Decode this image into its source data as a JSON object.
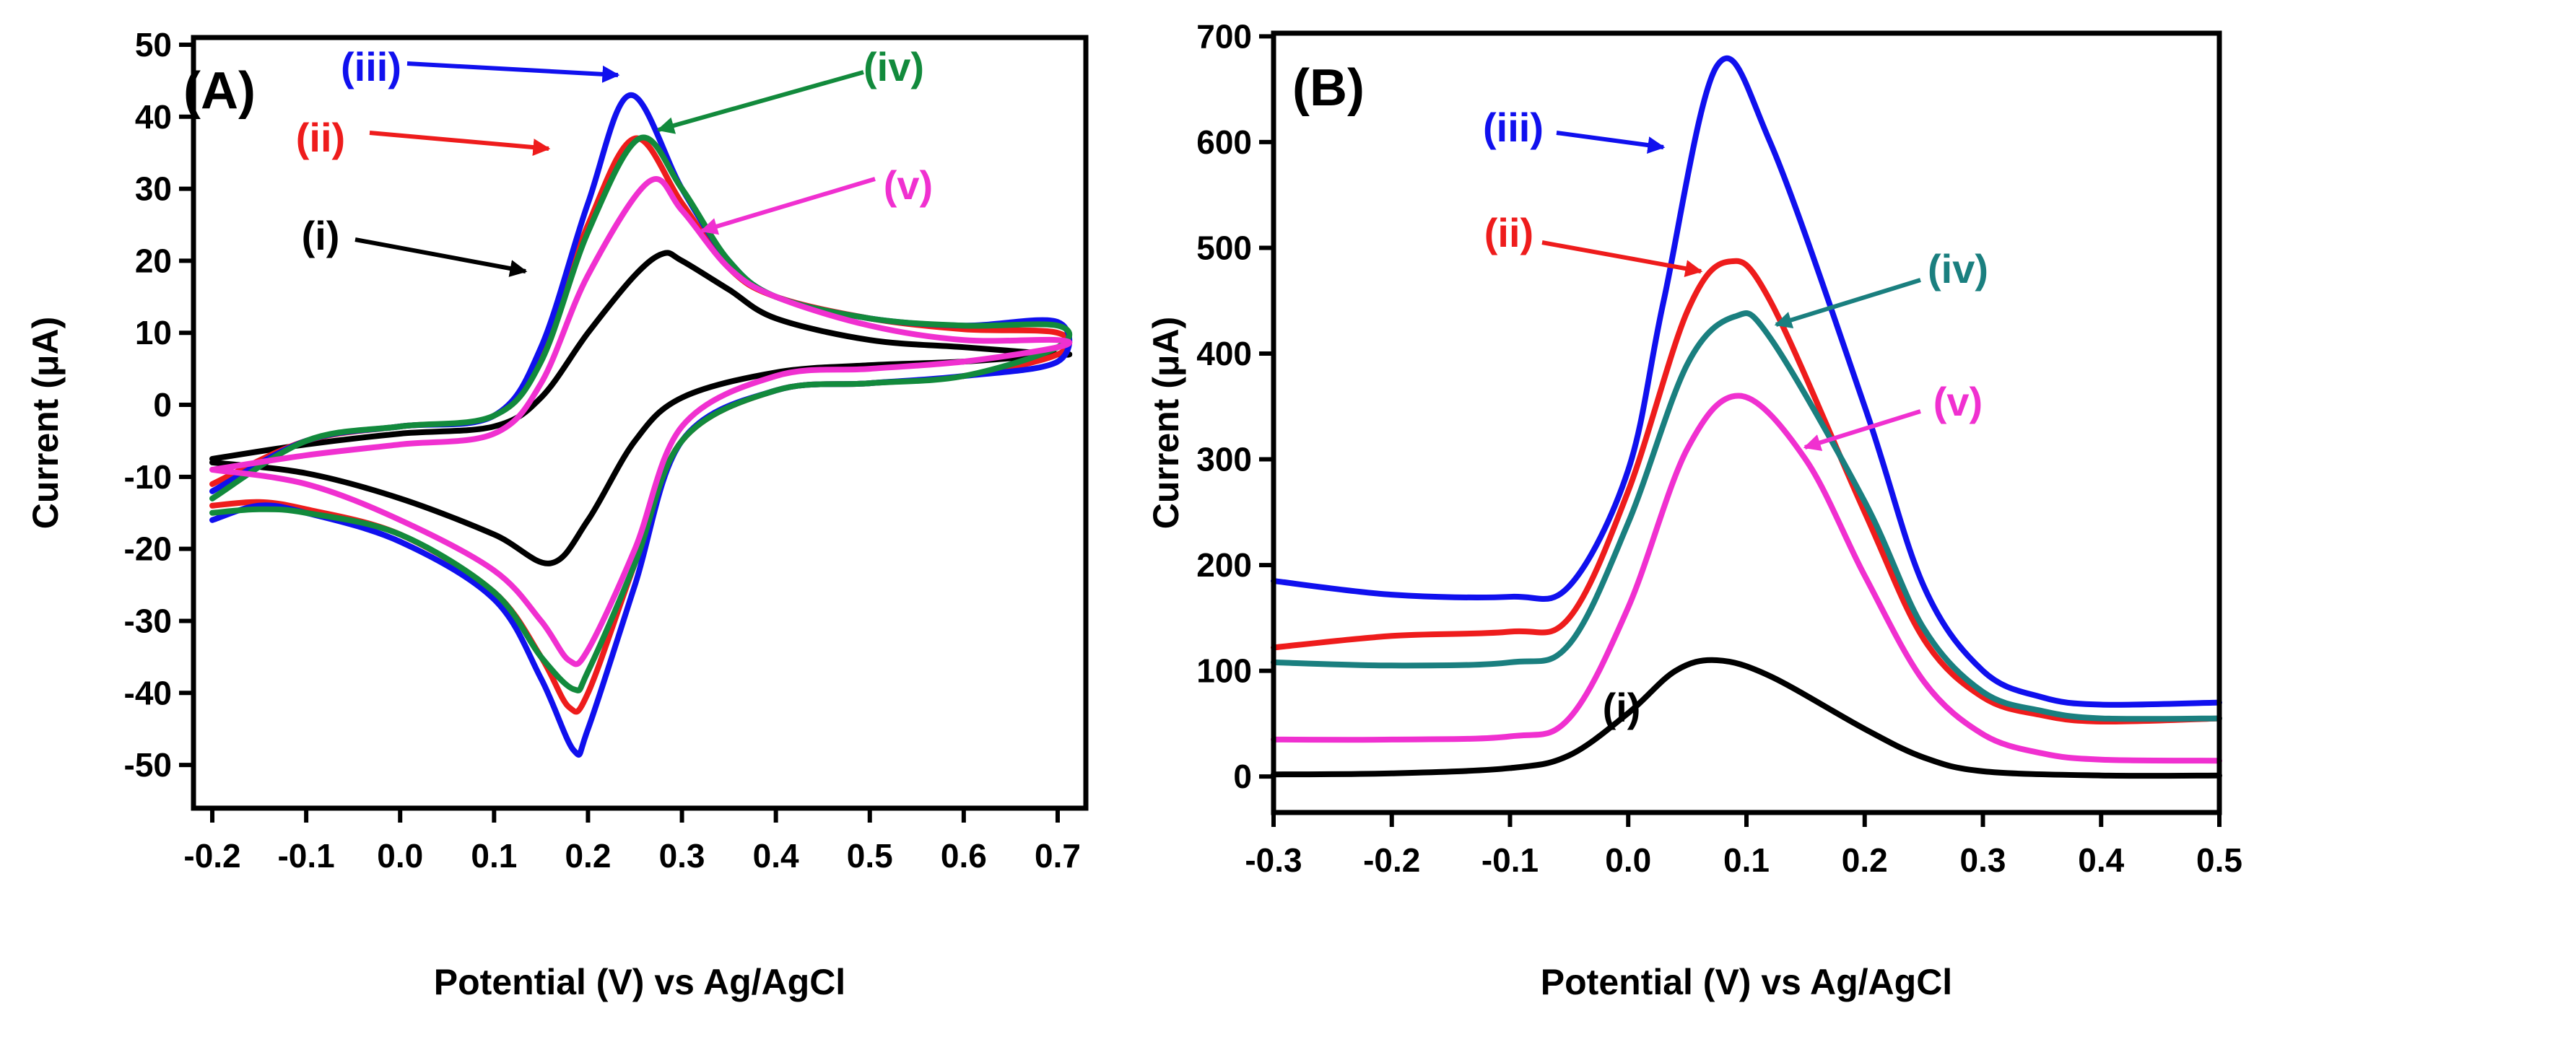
{
  "chart_data": [
    {
      "type": "line",
      "panel_label": "(A)",
      "xlabel": "Potential (V) vs Ag/AgCl",
      "ylabel": "Current (μA)",
      "xlim": [
        -0.22,
        0.73
      ],
      "ylim": [
        -56,
        51
      ],
      "xticks": [
        -0.2,
        -0.1,
        0.0,
        0.1,
        0.2,
        0.3,
        0.4,
        0.5,
        0.6,
        0.7
      ],
      "xtick_labels": [
        "-0.2",
        "-0.1",
        "0.0",
        "0.1",
        "0.2",
        "0.3",
        "0.4",
        "0.5",
        "0.6",
        "0.7"
      ],
      "yticks": [
        50,
        40,
        30,
        20,
        10,
        0,
        -10,
        -20,
        -30,
        -40,
        -50
      ],
      "ytick_labels": [
        "50",
        "40",
        "30",
        "20",
        "10",
        "0",
        "-10",
        "-20",
        "-30",
        "-40",
        "-50"
      ],
      "grid": false,
      "series": [
        {
          "name": "(i)",
          "color": "#000000",
          "x": [
            -0.2,
            -0.1,
            0.0,
            0.1,
            0.15,
            0.2,
            0.25,
            0.28,
            0.3,
            0.35,
            0.4,
            0.5,
            0.6,
            0.7,
            0.7,
            0.6,
            0.5,
            0.4,
            0.3,
            0.25,
            0.2,
            0.16,
            0.1,
            0.0,
            -0.1,
            -0.2
          ],
          "y": [
            -7.5,
            -5.5,
            -4,
            -3,
            1,
            10,
            18,
            21,
            20,
            16,
            12,
            9,
            8,
            7,
            7,
            6,
            5.5,
            4.5,
            1,
            -5,
            -16,
            -22,
            -18,
            -13,
            -9.5,
            -8
          ]
        },
        {
          "name": "(ii)",
          "color": "#ee1c1c",
          "x": [
            -0.2,
            -0.1,
            0.0,
            0.1,
            0.15,
            0.2,
            0.25,
            0.3,
            0.35,
            0.4,
            0.5,
            0.6,
            0.7,
            0.7,
            0.6,
            0.5,
            0.4,
            0.3,
            0.25,
            0.2,
            0.18,
            0.15,
            0.1,
            0.0,
            -0.1,
            -0.15,
            -0.2
          ],
          "y": [
            -11,
            -5,
            -3,
            -1.5,
            7,
            25,
            37,
            28,
            19,
            15,
            12,
            10.5,
            10,
            7,
            4,
            3,
            2,
            -5,
            -22,
            -40,
            -42,
            -35,
            -26,
            -18,
            -14.5,
            -13.5,
            -14
          ]
        },
        {
          "name": "(iii)",
          "color": "#1010ee",
          "x": [
            -0.2,
            -0.1,
            0.0,
            0.1,
            0.15,
            0.2,
            0.245,
            0.3,
            0.35,
            0.4,
            0.5,
            0.6,
            0.7,
            0.7,
            0.6,
            0.5,
            0.4,
            0.3,
            0.25,
            0.2,
            0.185,
            0.15,
            0.1,
            0.0,
            -0.1,
            -0.15,
            -0.2
          ],
          "y": [
            -12,
            -5,
            -3,
            -1.5,
            8,
            28,
            43,
            30,
            20,
            15,
            12,
            11,
            11.5,
            6,
            4,
            3,
            2,
            -5,
            -25,
            -45,
            -48,
            -38,
            -27,
            -19,
            -15,
            -14,
            -16
          ]
        },
        {
          "name": "(iv)",
          "color": "#128a3c",
          "x": [
            -0.2,
            -0.1,
            0.0,
            0.1,
            0.15,
            0.2,
            0.255,
            0.3,
            0.35,
            0.4,
            0.5,
            0.6,
            0.7,
            0.7,
            0.6,
            0.5,
            0.4,
            0.3,
            0.25,
            0.2,
            0.185,
            0.15,
            0.1,
            0.0,
            -0.1,
            -0.15,
            -0.2
          ],
          "y": [
            -13,
            -5,
            -3,
            -1.5,
            6,
            24,
            37,
            30,
            20,
            15,
            12,
            11,
            11,
            8,
            4,
            3,
            2,
            -5,
            -22,
            -37,
            -39.5,
            -35,
            -26,
            -18,
            -15,
            -14.5,
            -15
          ]
        },
        {
          "name": "(v)",
          "color": "#f030d0",
          "x": [
            -0.2,
            -0.1,
            0.0,
            0.1,
            0.15,
            0.2,
            0.265,
            0.3,
            0.35,
            0.4,
            0.5,
            0.6,
            0.7,
            0.7,
            0.6,
            0.5,
            0.4,
            0.3,
            0.25,
            0.2,
            0.18,
            0.15,
            0.1,
            0.0,
            -0.1,
            -0.2
          ],
          "y": [
            -9,
            -7,
            -5.5,
            -4,
            3,
            18,
            31,
            27,
            19,
            15,
            11,
            9,
            9,
            8,
            6,
            5,
            4,
            -3,
            -20,
            -34,
            -35.5,
            -30,
            -23,
            -16,
            -11,
            -9
          ]
        }
      ],
      "annotations": [
        "(i)",
        "(ii)",
        "(iii)",
        "(iv)",
        "(v)"
      ]
    },
    {
      "type": "line",
      "panel_label": "(B)",
      "xlabel": "Potential (V) vs Ag/AgCl",
      "ylabel": "Current (μA)",
      "xlim": [
        -0.3,
        0.5
      ],
      "ylim": [
        -34,
        703
      ],
      "xticks": [
        -0.3,
        -0.2,
        -0.1,
        0.0,
        0.1,
        0.2,
        0.3,
        0.4,
        0.5
      ],
      "xtick_labels": [
        "-0.3",
        "-0.2",
        "-0.1",
        "0.0",
        "0.1",
        "0.2",
        "0.3",
        "0.4",
        "0.5"
      ],
      "yticks": [
        0,
        100,
        200,
        300,
        400,
        500,
        600,
        700
      ],
      "ytick_labels": [
        "0",
        "100",
        "200",
        "300",
        "400",
        "500",
        "600",
        "700"
      ],
      "grid": false,
      "series": [
        {
          "name": "(i)",
          "color": "#000000",
          "x": [
            -0.3,
            -0.2,
            -0.1,
            -0.05,
            0.0,
            0.04,
            0.075,
            0.12,
            0.2,
            0.25,
            0.3,
            0.4,
            0.5
          ],
          "y": [
            2,
            3,
            8,
            20,
            60,
            100,
            110,
            95,
            45,
            18,
            5,
            1,
            1
          ]
        },
        {
          "name": "(ii)",
          "color": "#ee1c1c",
          "x": [
            -0.3,
            -0.2,
            -0.1,
            -0.05,
            0.0,
            0.05,
            0.085,
            0.12,
            0.2,
            0.25,
            0.3,
            0.35,
            0.4,
            0.5
          ],
          "y": [
            122,
            133,
            137,
            150,
            270,
            440,
            487,
            450,
            250,
            130,
            75,
            58,
            52,
            55
          ]
        },
        {
          "name": "(iii)",
          "color": "#1010ee",
          "x": [
            -0.3,
            -0.2,
            -0.1,
            -0.05,
            0.0,
            0.03,
            0.075,
            0.12,
            0.2,
            0.25,
            0.3,
            0.35,
            0.4,
            0.5
          ],
          "y": [
            185,
            172,
            170,
            180,
            290,
            450,
            672,
            600,
            350,
            180,
            100,
            75,
            68,
            70
          ]
        },
        {
          "name": "(iv)",
          "color": "#1a7f7f",
          "x": [
            -0.3,
            -0.2,
            -0.1,
            -0.05,
            0.0,
            0.05,
            0.09,
            0.12,
            0.2,
            0.25,
            0.3,
            0.35,
            0.4,
            0.5
          ],
          "y": [
            108,
            105,
            108,
            125,
            240,
            390,
            435,
            415,
            260,
            140,
            80,
            62,
            55,
            55
          ]
        },
        {
          "name": "(v)",
          "color": "#f030d0",
          "x": [
            -0.3,
            -0.2,
            -0.1,
            -0.05,
            0.0,
            0.05,
            0.095,
            0.15,
            0.2,
            0.25,
            0.3,
            0.35,
            0.4,
            0.5
          ],
          "y": [
            35,
            35,
            38,
            55,
            160,
            310,
            360,
            300,
            190,
            90,
            40,
            22,
            16,
            15
          ]
        }
      ],
      "annotations": [
        "(i)",
        "(ii)",
        "(iii)",
        "(iv)",
        "(v)"
      ]
    }
  ]
}
